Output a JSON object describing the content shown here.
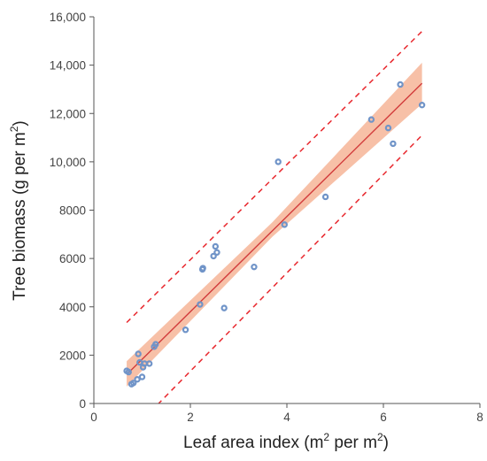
{
  "chart_data": {
    "type": "scatter",
    "title": "",
    "xlabel": {
      "prefix": "Leaf area index (m",
      "sup1": "2",
      "middle": " per m",
      "sup2": "2",
      "suffix": ")"
    },
    "ylabel": {
      "prefix": "Tree biomass (g per m",
      "sup": "2",
      "suffix": ")"
    },
    "xlim": [
      0,
      8
    ],
    "ylim": [
      0,
      16000
    ],
    "x_ticks": [
      0,
      2,
      4,
      6,
      8
    ],
    "x_tick_labels": [
      "0",
      "2",
      "4",
      "6",
      "8"
    ],
    "y_ticks": [
      0,
      2000,
      4000,
      6000,
      8000,
      10000,
      12000,
      14000,
      16000
    ],
    "y_tick_labels": [
      "0",
      "2000",
      "4000",
      "6000",
      "8000",
      "10,000",
      "12,000",
      "14,000",
      "16,000"
    ],
    "grid": false,
    "colors": {
      "points": "#7094c8",
      "fit_line": "#d23c3c",
      "confidence_band": "#f4a582",
      "prediction_interval": "#e8282e",
      "axis": "#555555"
    },
    "points": [
      {
        "x": 0.68,
        "y": 1350
      },
      {
        "x": 0.72,
        "y": 1300
      },
      {
        "x": 0.78,
        "y": 800
      },
      {
        "x": 0.82,
        "y": 850
      },
      {
        "x": 0.9,
        "y": 1000
      },
      {
        "x": 0.92,
        "y": 2050
      },
      {
        "x": 0.95,
        "y": 1700
      },
      {
        "x": 1.0,
        "y": 1100
      },
      {
        "x": 1.02,
        "y": 1500
      },
      {
        "x": 1.05,
        "y": 1650
      },
      {
        "x": 1.15,
        "y": 1650
      },
      {
        "x": 1.25,
        "y": 2350
      },
      {
        "x": 1.28,
        "y": 2450
      },
      {
        "x": 1.9,
        "y": 3050
      },
      {
        "x": 2.2,
        "y": 4100
      },
      {
        "x": 2.25,
        "y": 5550
      },
      {
        "x": 2.26,
        "y": 5600
      },
      {
        "x": 2.48,
        "y": 6100
      },
      {
        "x": 2.52,
        "y": 6500
      },
      {
        "x": 2.55,
        "y": 6250
      },
      {
        "x": 2.7,
        "y": 3950
      },
      {
        "x": 3.32,
        "y": 5650
      },
      {
        "x": 3.82,
        "y": 10000
      },
      {
        "x": 3.95,
        "y": 7400
      },
      {
        "x": 4.8,
        "y": 8550
      },
      {
        "x": 5.75,
        "y": 11750
      },
      {
        "x": 6.1,
        "y": 11400
      },
      {
        "x": 6.2,
        "y": 10750
      },
      {
        "x": 6.35,
        "y": 13200
      },
      {
        "x": 6.8,
        "y": 12350
      }
    ],
    "fit": {
      "x": [
        0.68,
        6.8
      ],
      "y": [
        1200,
        13250
      ]
    },
    "confidence_band": [
      {
        "x": 0.68,
        "lower": 700,
        "upper": 1750
      },
      {
        "x": 3.7,
        "lower": 6900,
        "upper": 7500
      },
      {
        "x": 6.8,
        "lower": 12400,
        "upper": 14100
      }
    ],
    "prediction_interval": {
      "upper": {
        "x": [
          0.68,
          6.8
        ],
        "y": [
          3350,
          15400
        ]
      },
      "lower": {
        "x": [
          0.9,
          6.8
        ],
        "y": [
          -900,
          11100
        ]
      }
    }
  }
}
